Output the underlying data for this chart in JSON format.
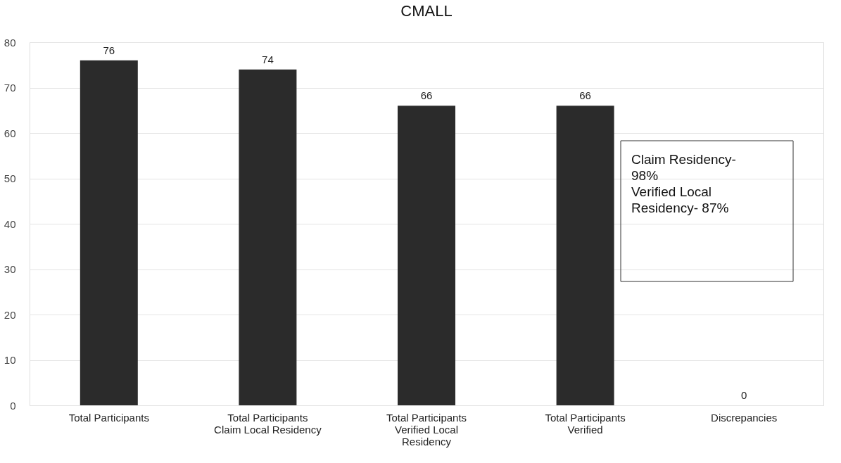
{
  "chart_data": {
    "type": "bar",
    "title": "CMALL",
    "categories": [
      "Total Participants",
      "Total Participants Claim Local Residency",
      "Total Participants Verified Local Residency",
      "Total Participants Verified",
      "Discrepancies"
    ],
    "values": [
      76,
      74,
      66,
      66,
      0
    ],
    "color": "#2b2b2b",
    "ylim": [
      0,
      80
    ],
    "yticks": [
      0,
      10,
      20,
      30,
      40,
      50,
      60,
      70,
      80
    ],
    "grid": "y",
    "data_labels": true,
    "annotations": [
      "Claim Residency- 98%",
      "Verified Local Residency- 87%"
    ]
  }
}
